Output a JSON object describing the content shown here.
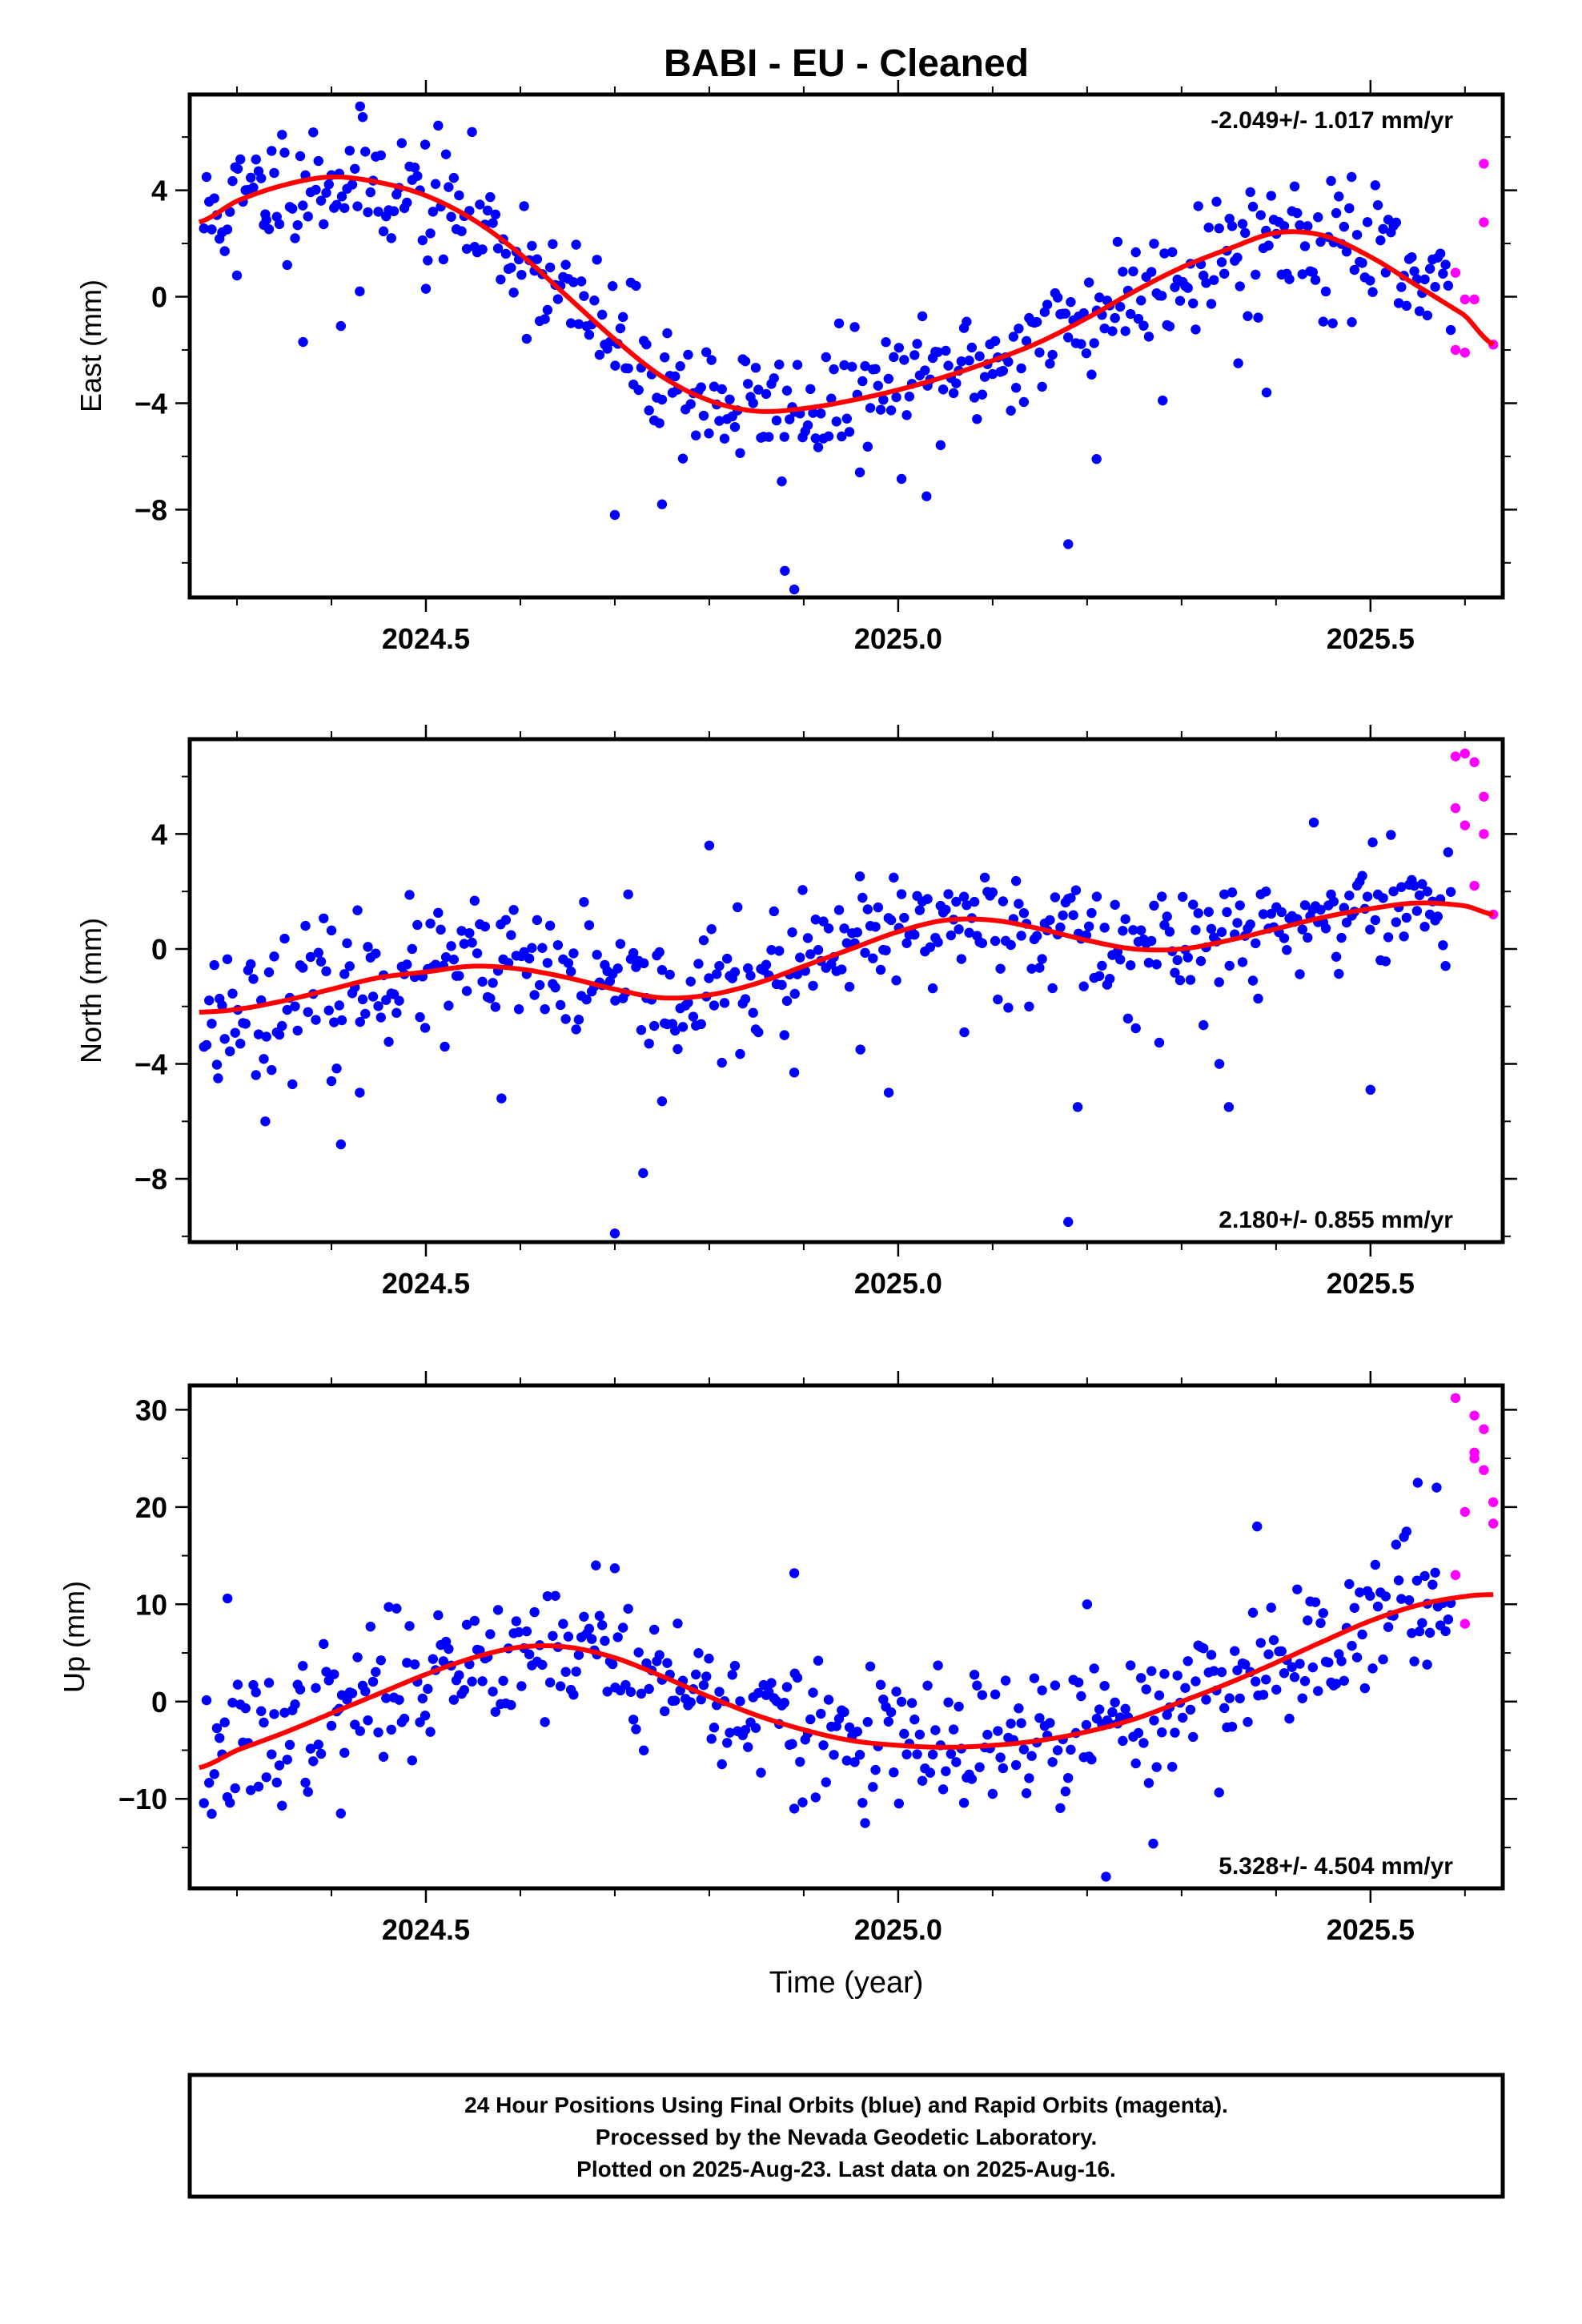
{
  "title": "BABI  - EU - Cleaned",
  "footer": {
    "line1": "24 Hour Positions Using Final Orbits (blue) and Rapid Orbits (magenta).",
    "line2": "Processed by the Nevada Geodetic Laboratory.",
    "line3": "Plotted on 2025-Aug-23. Last data on 2025-Aug-16."
  },
  "colors": {
    "final": "#0000ff",
    "rapid": "#ff00ff",
    "model": "#ff0000"
  },
  "chart_data": [
    {
      "type": "scatter",
      "ylabel": "East (mm)",
      "xlabel": "",
      "xlim": [
        2024.25,
        2025.64
      ],
      "ylim": [
        -11.3,
        7.6
      ],
      "xticks": [
        2024.5,
        2025.0,
        2025.5
      ],
      "xtick_labels": [
        "2024.5",
        "2025.0",
        "2025.5"
      ],
      "yticks": [
        -8,
        -4,
        0,
        4
      ],
      "ytick_labels": [
        "−8",
        "−4",
        "0",
        "4"
      ],
      "rate": "-2.049+/- 1.017 mm/yr",
      "rate_position": "top-right",
      "model_mean": [
        [
          2024.26,
          2.8
        ],
        [
          2024.3,
          3.6
        ],
        [
          2024.35,
          4.2
        ],
        [
          2024.4,
          4.5
        ],
        [
          2024.45,
          4.3
        ],
        [
          2024.5,
          3.8
        ],
        [
          2024.55,
          2.9
        ],
        [
          2024.6,
          1.6
        ],
        [
          2024.65,
          0.0
        ],
        [
          2024.7,
          -1.6
        ],
        [
          2024.75,
          -3.0
        ],
        [
          2024.8,
          -3.9
        ],
        [
          2024.85,
          -4.3
        ],
        [
          2024.9,
          -4.2
        ],
        [
          2024.95,
          -3.9
        ],
        [
          2025.0,
          -3.5
        ],
        [
          2025.05,
          -3.0
        ],
        [
          2025.1,
          -2.4
        ],
        [
          2025.15,
          -1.7
        ],
        [
          2025.2,
          -0.8
        ],
        [
          2025.25,
          0.2
        ],
        [
          2025.3,
          1.1
        ],
        [
          2025.35,
          1.8
        ],
        [
          2025.4,
          2.4
        ],
        [
          2025.45,
          2.3
        ],
        [
          2025.5,
          1.5
        ],
        [
          2025.55,
          0.4
        ],
        [
          2025.6,
          -0.7
        ],
        [
          2025.63,
          -1.8
        ]
      ],
      "scatter_sd": 1.2,
      "seed": 11,
      "outliers": [
        [
          2024.3,
          0.8
        ],
        [
          2024.33,
          3.1
        ],
        [
          2024.37,
          -1.7
        ],
        [
          2024.41,
          -1.1
        ],
        [
          2024.43,
          0.2
        ],
        [
          2024.5,
          0.3
        ],
        [
          2024.7,
          -8.2
        ],
        [
          2024.75,
          -7.8
        ],
        [
          2024.88,
          -10.3
        ],
        [
          2024.89,
          -11.0
        ],
        [
          2025.03,
          -7.5
        ],
        [
          2025.18,
          -9.3
        ],
        [
          2025.21,
          -6.1
        ],
        [
          2025.28,
          -3.9
        ],
        [
          2025.36,
          -2.5
        ],
        [
          2025.39,
          -3.6
        ],
        [
          2025.46,
          -1.0
        ],
        [
          2025.48,
          4.5
        ]
      ],
      "rapid": [
        [
          2025.59,
          0.9
        ],
        [
          2025.59,
          -2.0
        ],
        [
          2025.6,
          -2.1
        ],
        [
          2025.6,
          -0.1
        ],
        [
          2025.61,
          -0.1
        ],
        [
          2025.62,
          5.0
        ],
        [
          2025.62,
          2.8
        ],
        [
          2025.63,
          -1.8
        ]
      ]
    },
    {
      "type": "scatter",
      "ylabel": "North (mm)",
      "xlabel": "",
      "xlim": [
        2024.25,
        2025.64
      ],
      "ylim": [
        -10.2,
        7.3
      ],
      "xticks": [
        2024.5,
        2025.0,
        2025.5
      ],
      "xtick_labels": [
        "2024.5",
        "2025.0",
        "2025.5"
      ],
      "yticks": [
        -8,
        -4,
        0,
        4
      ],
      "ytick_labels": [
        "−8",
        "−4",
        "0",
        "4"
      ],
      "rate": "2.180+/- 0.855 mm/yr",
      "rate_position": "bottom-right",
      "model_mean": [
        [
          2024.26,
          -2.2
        ],
        [
          2024.3,
          -2.1
        ],
        [
          2024.35,
          -1.8
        ],
        [
          2024.4,
          -1.4
        ],
        [
          2024.45,
          -1.0
        ],
        [
          2024.5,
          -0.8
        ],
        [
          2024.55,
          -0.6
        ],
        [
          2024.6,
          -0.7
        ],
        [
          2024.65,
          -1.0
        ],
        [
          2024.7,
          -1.4
        ],
        [
          2024.75,
          -1.7
        ],
        [
          2024.8,
          -1.6
        ],
        [
          2024.85,
          -1.2
        ],
        [
          2024.9,
          -0.6
        ],
        [
          2024.95,
          0.0
        ],
        [
          2025.0,
          0.6
        ],
        [
          2025.05,
          1.0
        ],
        [
          2025.1,
          1.0
        ],
        [
          2025.15,
          0.7
        ],
        [
          2025.2,
          0.3
        ],
        [
          2025.25,
          0.0
        ],
        [
          2025.3,
          0.0
        ],
        [
          2025.35,
          0.3
        ],
        [
          2025.4,
          0.7
        ],
        [
          2025.45,
          1.1
        ],
        [
          2025.5,
          1.4
        ],
        [
          2025.55,
          1.6
        ],
        [
          2025.6,
          1.5
        ],
        [
          2025.63,
          1.2
        ]
      ],
      "scatter_sd": 1.1,
      "seed": 23,
      "outliers": [
        [
          2024.28,
          -4.5
        ],
        [
          2024.33,
          -6.0
        ],
        [
          2024.4,
          -4.6
        ],
        [
          2024.41,
          -6.8
        ],
        [
          2024.43,
          -5.0
        ],
        [
          2024.52,
          -3.4
        ],
        [
          2024.58,
          -5.2
        ],
        [
          2024.7,
          -9.9
        ],
        [
          2024.73,
          -7.8
        ],
        [
          2024.75,
          -5.3
        ],
        [
          2024.89,
          -4.3
        ],
        [
          2024.96,
          -3.5
        ],
        [
          2024.99,
          -5.0
        ],
        [
          2025.07,
          -2.9
        ],
        [
          2025.18,
          -9.5
        ],
        [
          2025.19,
          -5.5
        ],
        [
          2025.35,
          -5.5
        ],
        [
          2025.34,
          -4.0
        ],
        [
          2025.5,
          -4.9
        ],
        [
          2025.44,
          4.4
        ],
        [
          2024.8,
          3.6
        ]
      ],
      "rapid": [
        [
          2025.59,
          6.7
        ],
        [
          2025.59,
          4.9
        ],
        [
          2025.6,
          6.8
        ],
        [
          2025.6,
          4.3
        ],
        [
          2025.61,
          6.5
        ],
        [
          2025.61,
          2.2
        ],
        [
          2025.62,
          4.0
        ],
        [
          2025.62,
          5.3
        ],
        [
          2025.63,
          1.2
        ]
      ]
    },
    {
      "type": "scatter",
      "ylabel": "Up (mm)",
      "xlabel": "Time (year)",
      "xlim": [
        2024.25,
        2025.64
      ],
      "ylim": [
        -19.2,
        32.5
      ],
      "xticks": [
        2024.5,
        2025.0,
        2025.5
      ],
      "xtick_labels": [
        "2024.5",
        "2025.0",
        "2025.5"
      ],
      "yticks": [
        -10,
        0,
        10,
        20,
        30
      ],
      "ytick_labels": [
        "−10",
        "0",
        "10",
        "20",
        "30"
      ],
      "rate": "5.328+/- 4.504 mm/yr",
      "rate_position": "bottom-right",
      "model_mean": [
        [
          2024.26,
          -6.8
        ],
        [
          2024.3,
          -5.0
        ],
        [
          2024.35,
          -3.2
        ],
        [
          2024.4,
          -1.2
        ],
        [
          2024.45,
          0.8
        ],
        [
          2024.5,
          2.8
        ],
        [
          2024.55,
          4.5
        ],
        [
          2024.6,
          5.6
        ],
        [
          2024.65,
          5.6
        ],
        [
          2024.7,
          4.5
        ],
        [
          2024.75,
          2.6
        ],
        [
          2024.8,
          0.5
        ],
        [
          2024.85,
          -1.4
        ],
        [
          2024.9,
          -2.9
        ],
        [
          2024.95,
          -4.0
        ],
        [
          2025.0,
          -4.5
        ],
        [
          2025.05,
          -4.7
        ],
        [
          2025.1,
          -4.5
        ],
        [
          2025.15,
          -4.0
        ],
        [
          2025.2,
          -3.1
        ],
        [
          2025.25,
          -1.8
        ],
        [
          2025.3,
          0.0
        ],
        [
          2025.35,
          1.9
        ],
        [
          2025.4,
          4.0
        ],
        [
          2025.45,
          6.2
        ],
        [
          2025.5,
          8.3
        ],
        [
          2025.55,
          9.9
        ],
        [
          2025.6,
          10.8
        ],
        [
          2025.63,
          11.0
        ]
      ],
      "scatter_sd": 3.5,
      "seed": 37,
      "outliers": [
        [
          2024.29,
          10.6
        ],
        [
          2024.41,
          -11.5
        ],
        [
          2024.68,
          14.0
        ],
        [
          2024.7,
          13.7
        ],
        [
          2024.89,
          13.2
        ],
        [
          2024.89,
          -11.0
        ],
        [
          2025.2,
          10.0
        ],
        [
          2025.22,
          -18.0
        ],
        [
          2025.27,
          -14.6
        ],
        [
          2025.38,
          18.0
        ],
        [
          2025.55,
          22.5
        ],
        [
          2025.57,
          22.0
        ],
        [
          2025.56,
          3.8
        ]
      ],
      "rapid": [
        [
          2025.59,
          31.2
        ],
        [
          2025.59,
          13.0
        ],
        [
          2025.6,
          8.0
        ],
        [
          2025.6,
          19.5
        ],
        [
          2025.61,
          25.6
        ],
        [
          2025.61,
          29.4
        ],
        [
          2025.61,
          25.0
        ],
        [
          2025.62,
          23.8
        ],
        [
          2025.62,
          28.0
        ],
        [
          2025.63,
          18.3
        ],
        [
          2025.63,
          20.5
        ]
      ]
    }
  ]
}
